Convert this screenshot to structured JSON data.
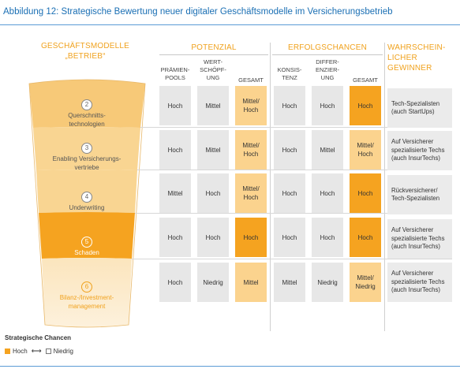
{
  "figure_title": "Abbildung 12: Strategische Bewertung neuer digitaler Geschäftsmodelle im Versicherungsbetrieb",
  "headers": {
    "geschaeftsmodelle": [
      "GESCHÄFTSMODELLE",
      "„BETRIEB“"
    ],
    "potenzial": "POTENZIAL",
    "erfolgschancen": "ERFOLGSCHANCEN",
    "gewinner": [
      "WAHRSCHEIN-",
      "LICHER",
      "GEWINNER"
    ]
  },
  "subheaders": {
    "praemien": [
      "PRÄMIEN-",
      "POOLS"
    ],
    "wertschoepfung": [
      "WERT-",
      "SCHÖPF-",
      "UNG"
    ],
    "pot_gesamt": [
      "GESAMT"
    ],
    "konsistenz": [
      "KONSIS-",
      "TENZ"
    ],
    "differenzierung": [
      "DIFFER-",
      "ENZIER-",
      "UNG"
    ],
    "erf_gesamt": [
      "GESAMT"
    ]
  },
  "colors": {
    "accent": "#f0a21e",
    "hoch_dark": "#f5a320",
    "mittel_light": "#fbd38e",
    "neutral_cell": "#e7e7e7",
    "title_blue": "#1a6fb4"
  },
  "rows": [
    {
      "number": "2",
      "model": [
        "Querschnitts-",
        "technologien"
      ],
      "values": [
        "Hoch",
        "Mittel",
        "Mittel/\nHoch",
        "Hoch",
        "Hoch",
        "Hoch"
      ],
      "winner": [
        "Tech-Spezialisten",
        "(auch StartUps)"
      ]
    },
    {
      "number": "3",
      "model": [
        "Enabling Versicherungs-",
        "vertriebe"
      ],
      "values": [
        "Hoch",
        "Mittel",
        "Mittel/\nHoch",
        "Hoch",
        "Mittel",
        "Mittel/\nHoch"
      ],
      "winner": [
        "Auf Versicherer",
        "spezialisierte Techs",
        "(auch InsurTechs)"
      ]
    },
    {
      "number": "4",
      "model": [
        "Underwriting"
      ],
      "values": [
        "Mittel",
        "Hoch",
        "Mittel/\nHoch",
        "Hoch",
        "Hoch",
        "Hoch"
      ],
      "winner": [
        "Rückversicherer/",
        "Tech-Spezialisten"
      ]
    },
    {
      "number": "5",
      "model": [
        "Schaden"
      ],
      "values": [
        "Hoch",
        "Hoch",
        "Hoch",
        "Hoch",
        "Hoch",
        "Hoch"
      ],
      "winner": [
        "Auf Versicherer",
        "spezialisierte Techs",
        "(auch InsurTechs)"
      ]
    },
    {
      "number": "6",
      "model": [
        "Bilanz-/Investment-",
        "management"
      ],
      "values": [
        "Hoch",
        "Niedrig",
        "Mittel",
        "Mittel",
        "Niedrig",
        "Mittel/\nNiedrig"
      ],
      "winner": [
        "Auf Versicherer",
        "spezialisierte Techs",
        "(auch InsurTechs)"
      ]
    }
  ],
  "legend": {
    "title": "Strategische Chancen",
    "hoch": "Hoch",
    "arrow": "⟷",
    "niedrig": "Niedrig"
  }
}
